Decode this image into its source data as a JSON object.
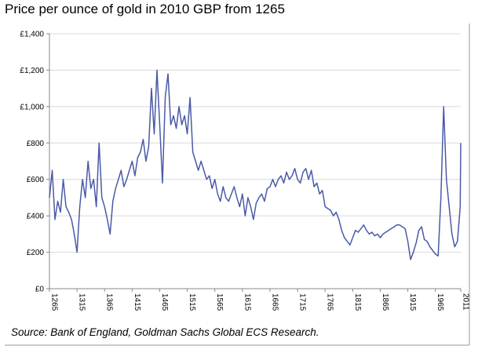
{
  "chart_data": {
    "type": "line",
    "title": "Price per ounce of gold in 2010 GBP from 1265",
    "source": "Source: Bank of England, Goldman Sachs Global ECS Research.",
    "color": "#4a5aa8",
    "grid": true,
    "xlim": [
      1265,
      2011
    ],
    "xticks": [
      1265,
      1315,
      1365,
      1415,
      1465,
      1515,
      1565,
      1615,
      1665,
      1715,
      1765,
      1815,
      1865,
      1915,
      1965,
      2011
    ],
    "ylim": [
      0,
      1400
    ],
    "yticks": [
      {
        "value": 0,
        "label": "£0"
      },
      {
        "value": 200,
        "label": "£200"
      },
      {
        "value": 400,
        "label": "£400"
      },
      {
        "value": 600,
        "label": "£600"
      },
      {
        "value": 800,
        "label": "£800"
      },
      {
        "value": 1000,
        "label": "£1,000"
      },
      {
        "value": 1200,
        "label": "£1,200"
      },
      {
        "value": 1400,
        "label": "£1,400"
      }
    ],
    "x": [
      1265,
      1270,
      1275,
      1280,
      1285,
      1290,
      1295,
      1300,
      1305,
      1310,
      1315,
      1320,
      1325,
      1330,
      1335,
      1340,
      1345,
      1350,
      1355,
      1360,
      1365,
      1370,
      1375,
      1380,
      1385,
      1390,
      1395,
      1400,
      1405,
      1410,
      1415,
      1420,
      1425,
      1430,
      1435,
      1440,
      1445,
      1450,
      1455,
      1460,
      1465,
      1470,
      1475,
      1480,
      1485,
      1490,
      1495,
      1500,
      1505,
      1510,
      1515,
      1520,
      1525,
      1530,
      1535,
      1540,
      1545,
      1550,
      1555,
      1560,
      1565,
      1570,
      1575,
      1580,
      1585,
      1590,
      1595,
      1600,
      1605,
      1610,
      1615,
      1620,
      1625,
      1630,
      1635,
      1640,
      1645,
      1650,
      1655,
      1660,
      1665,
      1670,
      1675,
      1680,
      1685,
      1690,
      1695,
      1700,
      1705,
      1710,
      1715,
      1720,
      1725,
      1730,
      1735,
      1740,
      1745,
      1750,
      1755,
      1760,
      1765,
      1770,
      1775,
      1780,
      1785,
      1790,
      1795,
      1800,
      1805,
      1810,
      1815,
      1820,
      1825,
      1830,
      1835,
      1840,
      1845,
      1850,
      1855,
      1860,
      1865,
      1870,
      1875,
      1880,
      1885,
      1890,
      1895,
      1900,
      1905,
      1910,
      1915,
      1920,
      1925,
      1930,
      1935,
      1940,
      1945,
      1950,
      1955,
      1960,
      1965,
      1970,
      1975,
      1980,
      1985,
      1990,
      1995,
      2000,
      2005,
      2010,
      2011
    ],
    "values": [
      500,
      650,
      380,
      480,
      420,
      600,
      450,
      420,
      380,
      300,
      200,
      450,
      600,
      500,
      700,
      550,
      600,
      450,
      800,
      500,
      450,
      380,
      300,
      480,
      550,
      600,
      650,
      560,
      600,
      650,
      700,
      620,
      720,
      750,
      820,
      700,
      780,
      1100,
      850,
      1200,
      900,
      580,
      1050,
      1180,
      900,
      950,
      880,
      1000,
      900,
      950,
      850,
      1050,
      750,
      700,
      650,
      700,
      650,
      600,
      620,
      550,
      600,
      520,
      480,
      560,
      500,
      480,
      520,
      560,
      500,
      450,
      520,
      400,
      500,
      450,
      380,
      470,
      500,
      520,
      480,
      550,
      560,
      600,
      560,
      600,
      620,
      580,
      640,
      600,
      620,
      660,
      600,
      580,
      640,
      660,
      600,
      650,
      560,
      580,
      520,
      540,
      450,
      440,
      430,
      400,
      420,
      380,
      320,
      280,
      260,
      240,
      280,
      320,
      310,
      330,
      350,
      320,
      300,
      310,
      290,
      300,
      280,
      300,
      310,
      320,
      330,
      340,
      350,
      350,
      340,
      330,
      260,
      160,
      200,
      250,
      320,
      340,
      270,
      260,
      230,
      210,
      190,
      180,
      500,
      1000,
      600,
      450,
      300,
      230,
      260,
      450,
      800
    ]
  }
}
